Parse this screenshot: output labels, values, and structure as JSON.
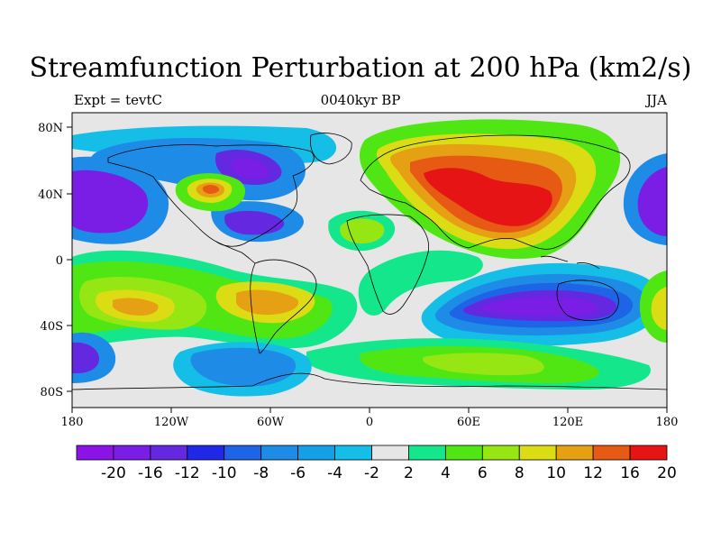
{
  "title": "Streamfunction Perturbation at 200 hPa (km2/s)",
  "subtitle_left": "Expt = tevtC",
  "subtitle_center": "0040kyr BP",
  "subtitle_right": "JJA",
  "x_tick_labels": [
    "180",
    "120W",
    "60W",
    "0",
    "60E",
    "120E",
    "180"
  ],
  "y_tick_labels": [
    "80N",
    "40N",
    "0",
    "40S",
    "80S"
  ],
  "colorbar": {
    "labels": [
      "-20",
      "-16",
      "-12",
      "-10",
      "-8",
      "-6",
      "-4",
      "-2",
      "2",
      "4",
      "6",
      "8",
      "10",
      "12",
      "16",
      "20"
    ],
    "colors": [
      "#8a14e6",
      "#7a1ee6",
      "#6428e0",
      "#1e28e6",
      "#1e64e6",
      "#1e8ce6",
      "#14a0e6",
      "#14bee6",
      "#e6e6e6",
      "#14e68c",
      "#50e614",
      "#96e614",
      "#dcdc14",
      "#e6a014",
      "#e65a14",
      "#e61414"
    ]
  },
  "colors": {
    "background": "#e6e6e6",
    "coastline": "#000000"
  }
}
